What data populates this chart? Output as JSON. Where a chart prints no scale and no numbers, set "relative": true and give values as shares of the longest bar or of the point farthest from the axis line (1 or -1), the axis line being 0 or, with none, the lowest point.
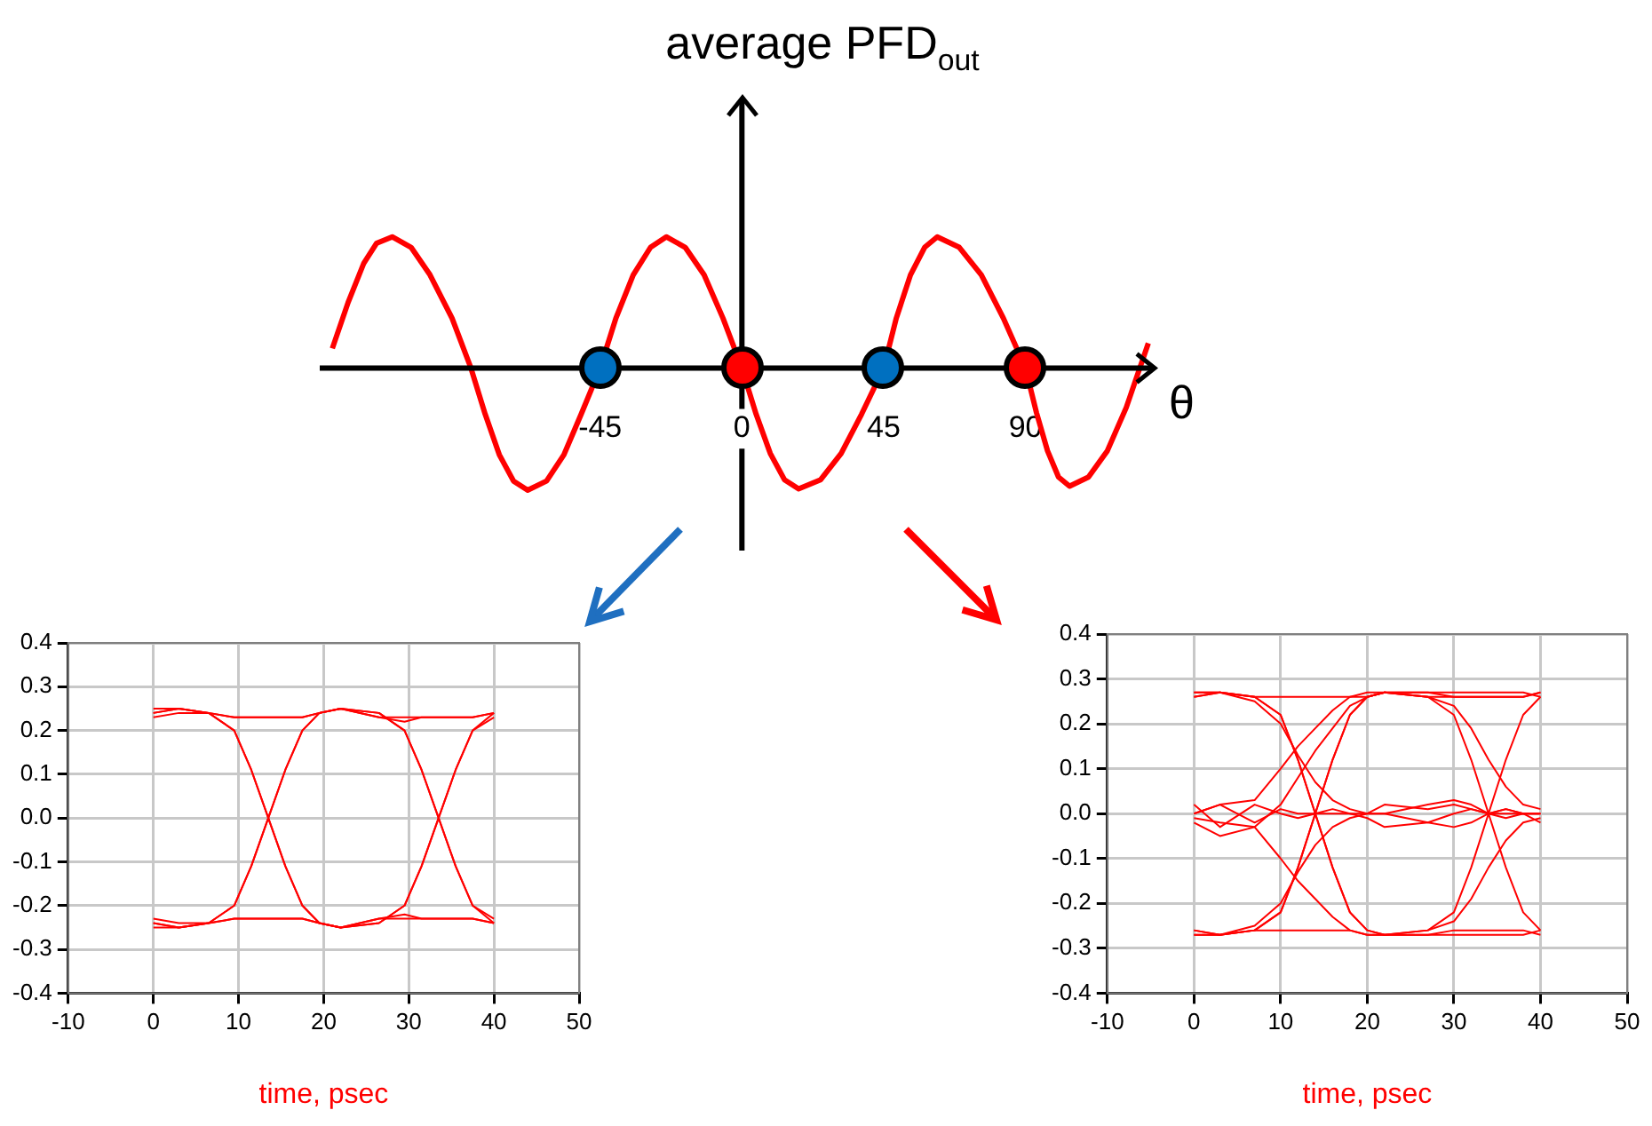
{
  "chart_data": [
    {
      "type": "line",
      "relative": true,
      "ylabel": "average PFD$_{out}$",
      "xlabel": "θ",
      "xlim": [
        -134,
        131
      ],
      "xticks": [
        -45,
        0,
        45,
        90
      ],
      "series": [
        {
          "color": "#ff0000",
          "x": [
            -130,
            -125,
            -120,
            -116,
            -111,
            -105,
            -99,
            -92,
            -86,
            -81.5,
            -77,
            -72.5,
            -68,
            -62,
            -56.5,
            -51,
            -45,
            -40,
            -34.5,
            -29,
            -24,
            -18,
            -12,
            -6,
            0,
            4.5,
            9,
            13.5,
            18,
            25,
            31.5,
            38,
            45,
            49,
            53.5,
            58,
            62,
            69,
            76,
            83,
            90,
            93.5,
            97,
            100.5,
            104,
            110,
            116,
            122,
            129
          ],
          "values": [
            0.15,
            0.5,
            0.8,
            0.95,
            1,
            0.92,
            0.71,
            0.38,
            0,
            -0.35,
            -0.66,
            -0.86,
            -0.93,
            -0.86,
            -0.66,
            -0.35,
            0,
            0.38,
            0.71,
            0.92,
            1,
            0.92,
            0.71,
            0.38,
            0,
            -0.35,
            -0.65,
            -0.85,
            -0.92,
            -0.85,
            -0.65,
            -0.35,
            0,
            0.38,
            0.71,
            0.92,
            1,
            0.92,
            0.71,
            0.38,
            0,
            -0.34,
            -0.63,
            -0.83,
            -0.9,
            -0.83,
            -0.63,
            -0.3,
            0.19
          ]
        }
      ]
    },
    {
      "type": "line",
      "xlabel": "time, psec",
      "grid": true,
      "xlim": [
        -10,
        50
      ],
      "xticks": [
        -10,
        0,
        10,
        20,
        30,
        40,
        50
      ],
      "ylim": [
        -0.4,
        0.4
      ],
      "yticks": [
        -0.4,
        -0.3,
        -0.2,
        -0.1,
        {
          "value": 0,
          "label": "0.0"
        },
        0.1,
        0.2,
        0.3,
        0.4
      ],
      "x": [
        0,
        3,
        6.5,
        9.5,
        11.5,
        13.5,
        15.5,
        17.5,
        19.5,
        22,
        26.5,
        29.5,
        31.5,
        33.5,
        35.5,
        37.5,
        40
      ],
      "series": [
        {
          "color": "#ff0000",
          "values": [
            0.24,
            0.25,
            0.24,
            0.23,
            0.23,
            0.23,
            0.23,
            0.23,
            0.24,
            0.25,
            0.23,
            0.22,
            0.23,
            0.23,
            0.23,
            0.23,
            0.24
          ]
        },
        {
          "color": "#ff0000",
          "values": [
            0.24,
            0.25,
            0.24,
            0.2,
            0.11,
            0,
            -0.11,
            -0.2,
            -0.24,
            -0.25,
            -0.23,
            -0.23,
            -0.23,
            -0.23,
            -0.23,
            -0.23,
            -0.24
          ]
        },
        {
          "color": "#ff0000",
          "values": [
            0.25,
            0.25,
            0.24,
            0.2,
            0.11,
            0,
            -0.11,
            -0.2,
            -0.24,
            -0.25,
            -0.24,
            -0.2,
            -0.11,
            0,
            0.11,
            0.2,
            0.23
          ]
        },
        {
          "color": "#ff0000",
          "values": [
            0.23,
            0.24,
            0.24,
            0.23,
            0.23,
            0.23,
            0.23,
            0.23,
            0.24,
            0.25,
            0.24,
            0.2,
            0.11,
            0,
            -0.11,
            -0.2,
            -0.24
          ]
        },
        {
          "color": "#ff0000",
          "values": [
            -0.24,
            -0.25,
            -0.24,
            -0.23,
            -0.23,
            -0.23,
            -0.23,
            -0.23,
            -0.24,
            -0.25,
            -0.23,
            -0.22,
            -0.23,
            -0.23,
            -0.23,
            -0.23,
            -0.24
          ]
        },
        {
          "color": "#ff0000",
          "values": [
            -0.24,
            -0.25,
            -0.24,
            -0.2,
            -0.11,
            0,
            0.11,
            0.2,
            0.24,
            0.25,
            0.23,
            0.23,
            0.23,
            0.23,
            0.23,
            0.23,
            0.24
          ]
        },
        {
          "color": "#ff0000",
          "values": [
            -0.25,
            -0.25,
            -0.24,
            -0.2,
            -0.11,
            0,
            0.11,
            0.2,
            0.24,
            0.25,
            0.24,
            0.2,
            0.11,
            0,
            -0.11,
            -0.2,
            -0.23
          ]
        },
        {
          "color": "#ff0000",
          "values": [
            -0.23,
            -0.24,
            -0.24,
            -0.23,
            -0.23,
            -0.23,
            -0.23,
            -0.23,
            -0.24,
            -0.25,
            -0.24,
            -0.2,
            -0.11,
            0,
            0.11,
            0.2,
            0.24
          ]
        }
      ]
    },
    {
      "type": "line",
      "xlabel": "time, psec",
      "grid": true,
      "xlim": [
        -10,
        50
      ],
      "xticks": [
        -10,
        0,
        10,
        20,
        30,
        40,
        50
      ],
      "ylim": [
        -0.4,
        0.4
      ],
      "yticks": [
        -0.4,
        -0.3,
        -0.2,
        -0.1,
        {
          "value": 0,
          "label": "0.0"
        },
        0.1,
        0.2,
        0.3,
        0.4
      ],
      "x": [
        0,
        3,
        7,
        10,
        12,
        14,
        16,
        18,
        20,
        22,
        27,
        30,
        32,
        34,
        36,
        38,
        40
      ],
      "series": [
        {
          "color": "#ff0000",
          "values": [
            0.27,
            0.27,
            0.26,
            0.26,
            0.26,
            0.26,
            0.26,
            0.26,
            0.26,
            0.27,
            0.27,
            0.26,
            0.26,
            0.26,
            0.26,
            0.26,
            0.27
          ]
        },
        {
          "color": "#ff0000",
          "values": [
            -0.27,
            -0.27,
            -0.26,
            -0.26,
            -0.26,
            -0.26,
            -0.26,
            -0.26,
            -0.27,
            -0.27,
            -0.27,
            -0.26,
            -0.26,
            -0.26,
            -0.26,
            -0.26,
            -0.27
          ]
        },
        {
          "color": "#ff0000",
          "values": [
            0.26,
            0.27,
            0.26,
            0.22,
            0.12,
            0,
            -0.12,
            -0.22,
            -0.26,
            -0.27,
            -0.26,
            -0.22,
            -0.12,
            0,
            0.12,
            0.22,
            0.26
          ]
        },
        {
          "color": "#ff0000",
          "values": [
            -0.26,
            -0.27,
            -0.26,
            -0.22,
            -0.12,
            0,
            0.12,
            0.22,
            0.26,
            0.27,
            0.26,
            0.22,
            0.12,
            0,
            -0.12,
            -0.22,
            -0.26
          ]
        },
        {
          "color": "#ff0000",
          "values": [
            0.26,
            0.27,
            0.26,
            0.22,
            0.12,
            0,
            -0.12,
            -0.22,
            -0.26,
            -0.27,
            -0.27,
            -0.27,
            -0.27,
            -0.27,
            -0.27,
            -0.27,
            -0.26
          ]
        },
        {
          "color": "#ff0000",
          "values": [
            -0.26,
            -0.27,
            -0.26,
            -0.22,
            -0.12,
            0,
            0.12,
            0.22,
            0.26,
            0.27,
            0.27,
            0.27,
            0.27,
            0.27,
            0.27,
            0.27,
            0.26
          ]
        },
        {
          "color": "#ff0000",
          "values": [
            0,
            0.02,
            -0.02,
            0.01,
            0,
            0,
            0,
            0,
            0,
            0.02,
            0.01,
            0.02,
            0.01,
            0,
            0,
            0,
            0
          ]
        },
        {
          "color": "#ff0000",
          "values": [
            0.02,
            -0.03,
            0.02,
            0,
            -0.01,
            0,
            0.01,
            0,
            -0.01,
            -0.03,
            -0.02,
            0,
            0.01,
            0,
            0.01,
            0,
            -0.02
          ]
        },
        {
          "color": "#ff0000",
          "values": [
            0.27,
            0.27,
            0.25,
            0.2,
            0.13,
            0.07,
            0.03,
            0.01,
            0,
            0,
            0.02,
            0.03,
            0.02,
            0,
            -0.01,
            0,
            0
          ]
        },
        {
          "color": "#ff0000",
          "values": [
            -0.27,
            -0.27,
            -0.25,
            -0.2,
            -0.13,
            -0.07,
            -0.03,
            -0.01,
            0,
            0,
            -0.02,
            -0.03,
            -0.02,
            0,
            0.01,
            0,
            0
          ]
        },
        {
          "color": "#ff0000",
          "values": [
            0,
            0.02,
            0.03,
            0.1,
            0.15,
            0.19,
            0.23,
            0.26,
            0.27,
            0.27,
            0.26,
            0.24,
            0.19,
            0.12,
            0.06,
            0.02,
            0.01
          ]
        },
        {
          "color": "#ff0000",
          "values": [
            -0.01,
            -0.02,
            -0.03,
            -0.1,
            -0.15,
            -0.19,
            -0.23,
            -0.26,
            -0.27,
            -0.27,
            -0.26,
            -0.24,
            -0.19,
            -0.12,
            -0.06,
            -0.02,
            -0.01
          ]
        },
        {
          "color": "#ff0000",
          "values": [
            -0.02,
            -0.05,
            -0.03,
            0.02,
            0.08,
            0.14,
            0.19,
            0.24,
            0.26,
            0.27,
            0.26,
            0.26,
            0.26,
            0.26,
            0.26,
            0.26,
            0.27
          ]
        }
      ]
    }
  ]
}
